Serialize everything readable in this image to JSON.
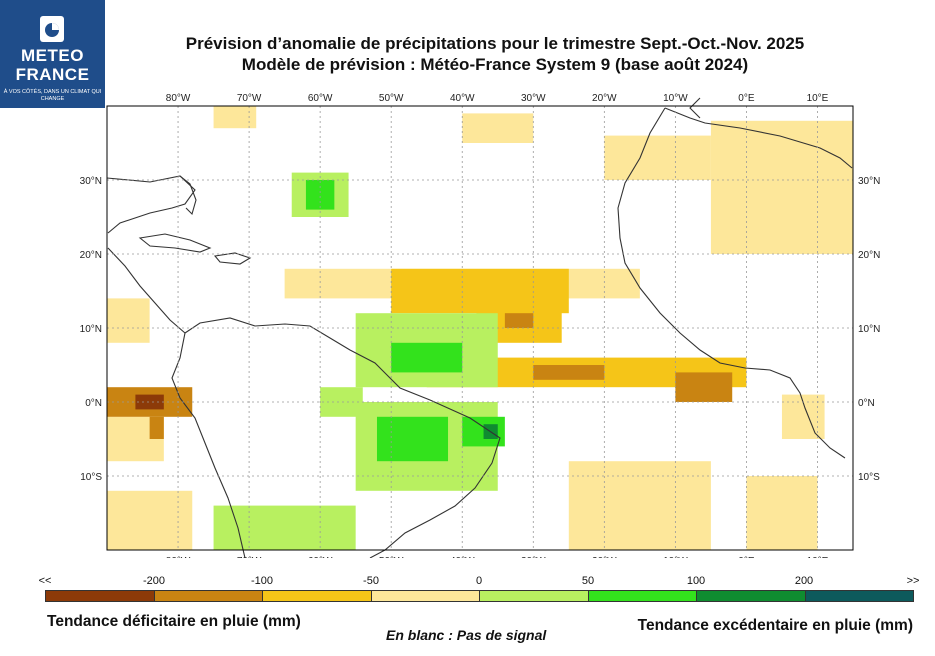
{
  "logo": {
    "icon": "meteo-france-logo-icon",
    "line1": "METEO",
    "line2": "FRANCE",
    "tagline": "À VOS CÔTÉS, DANS UN CLIMAT QUI CHANGE"
  },
  "title": {
    "line1": "Prévision d’anomalie de précipitations pour le trimestre Sept.-Oct.-Nov. 2025",
    "line2": "Modèle de prévision : Météo-France System 9 (base août 2024)"
  },
  "map": {
    "lon_labels": [
      "80°W",
      "70°W",
      "60°W",
      "50°W",
      "40°W",
      "30°W",
      "20°W",
      "10°W",
      "0°E",
      "10°E"
    ],
    "lat_labels": [
      "30°N",
      "20°N",
      "10°N",
      "0°N",
      "10°S"
    ],
    "lon_range": [
      -90,
      15
    ],
    "lat_range": [
      -20,
      40
    ]
  },
  "legend": {
    "left_arrow": "<<",
    "right_arrow": ">>",
    "thresholds": [
      "-200",
      "-100",
      "-50",
      "0",
      "50",
      "100",
      "200"
    ],
    "colors": [
      "#8c3a08",
      "#c98412",
      "#f5c518",
      "#fde79a",
      "#b8f060",
      "#33e21c",
      "#0f8c30",
      "#0d5a5c"
    ]
  },
  "captions": {
    "deficit": "Tendance déficitaire en pluie (mm)",
    "no_signal": "En blanc : Pas de signal",
    "excess": "Tendance excédentaire en pluie (mm)"
  }
}
